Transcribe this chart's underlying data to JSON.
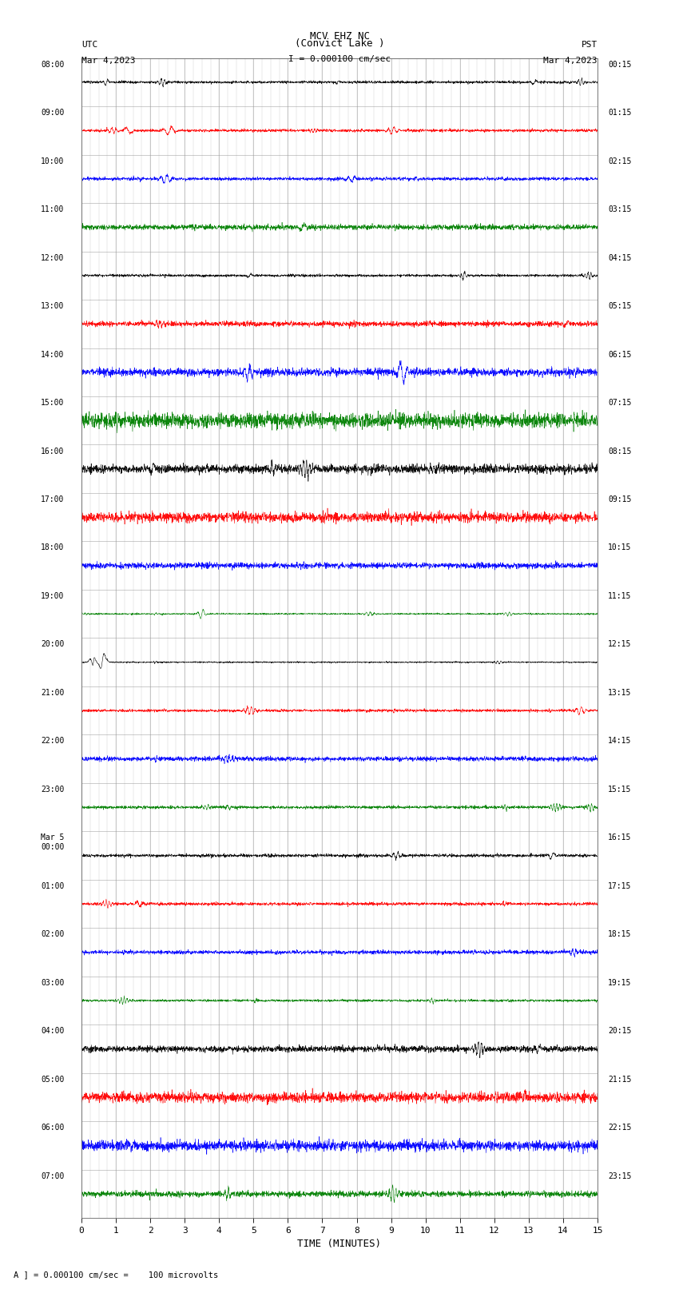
{
  "title_line1": "MCV EHZ NC",
  "title_line2": "(Convict Lake )",
  "title_line3": "I = 0.000100 cm/sec",
  "xlabel": "TIME (MINUTES)",
  "bottom_note": "A ] = 0.000100 cm/sec =    100 microvolts",
  "x_min": 0,
  "x_max": 15,
  "x_ticks": [
    0,
    1,
    2,
    3,
    4,
    5,
    6,
    7,
    8,
    9,
    10,
    11,
    12,
    13,
    14,
    15
  ],
  "trace_colors_cycle": [
    "black",
    "red",
    "blue",
    "green"
  ],
  "left_labels": [
    "08:00",
    "09:00",
    "10:00",
    "11:00",
    "12:00",
    "13:00",
    "14:00",
    "15:00",
    "16:00",
    "17:00",
    "18:00",
    "19:00",
    "20:00",
    "21:00",
    "22:00",
    "23:00",
    "Mar 5\n00:00",
    "01:00",
    "02:00",
    "03:00",
    "04:00",
    "05:00",
    "06:00",
    "07:00"
  ],
  "right_labels": [
    "00:15",
    "01:15",
    "02:15",
    "03:15",
    "04:15",
    "05:15",
    "06:15",
    "07:15",
    "08:15",
    "09:15",
    "10:15",
    "11:15",
    "12:15",
    "13:15",
    "14:15",
    "15:15",
    "16:15",
    "17:15",
    "18:15",
    "19:15",
    "20:15",
    "21:15",
    "22:15",
    "23:15"
  ],
  "background_color": "#ffffff",
  "grid_color": "#999999",
  "num_rows": 24,
  "noise_amplitude": 0.06,
  "amplitude_scale": 0.32
}
